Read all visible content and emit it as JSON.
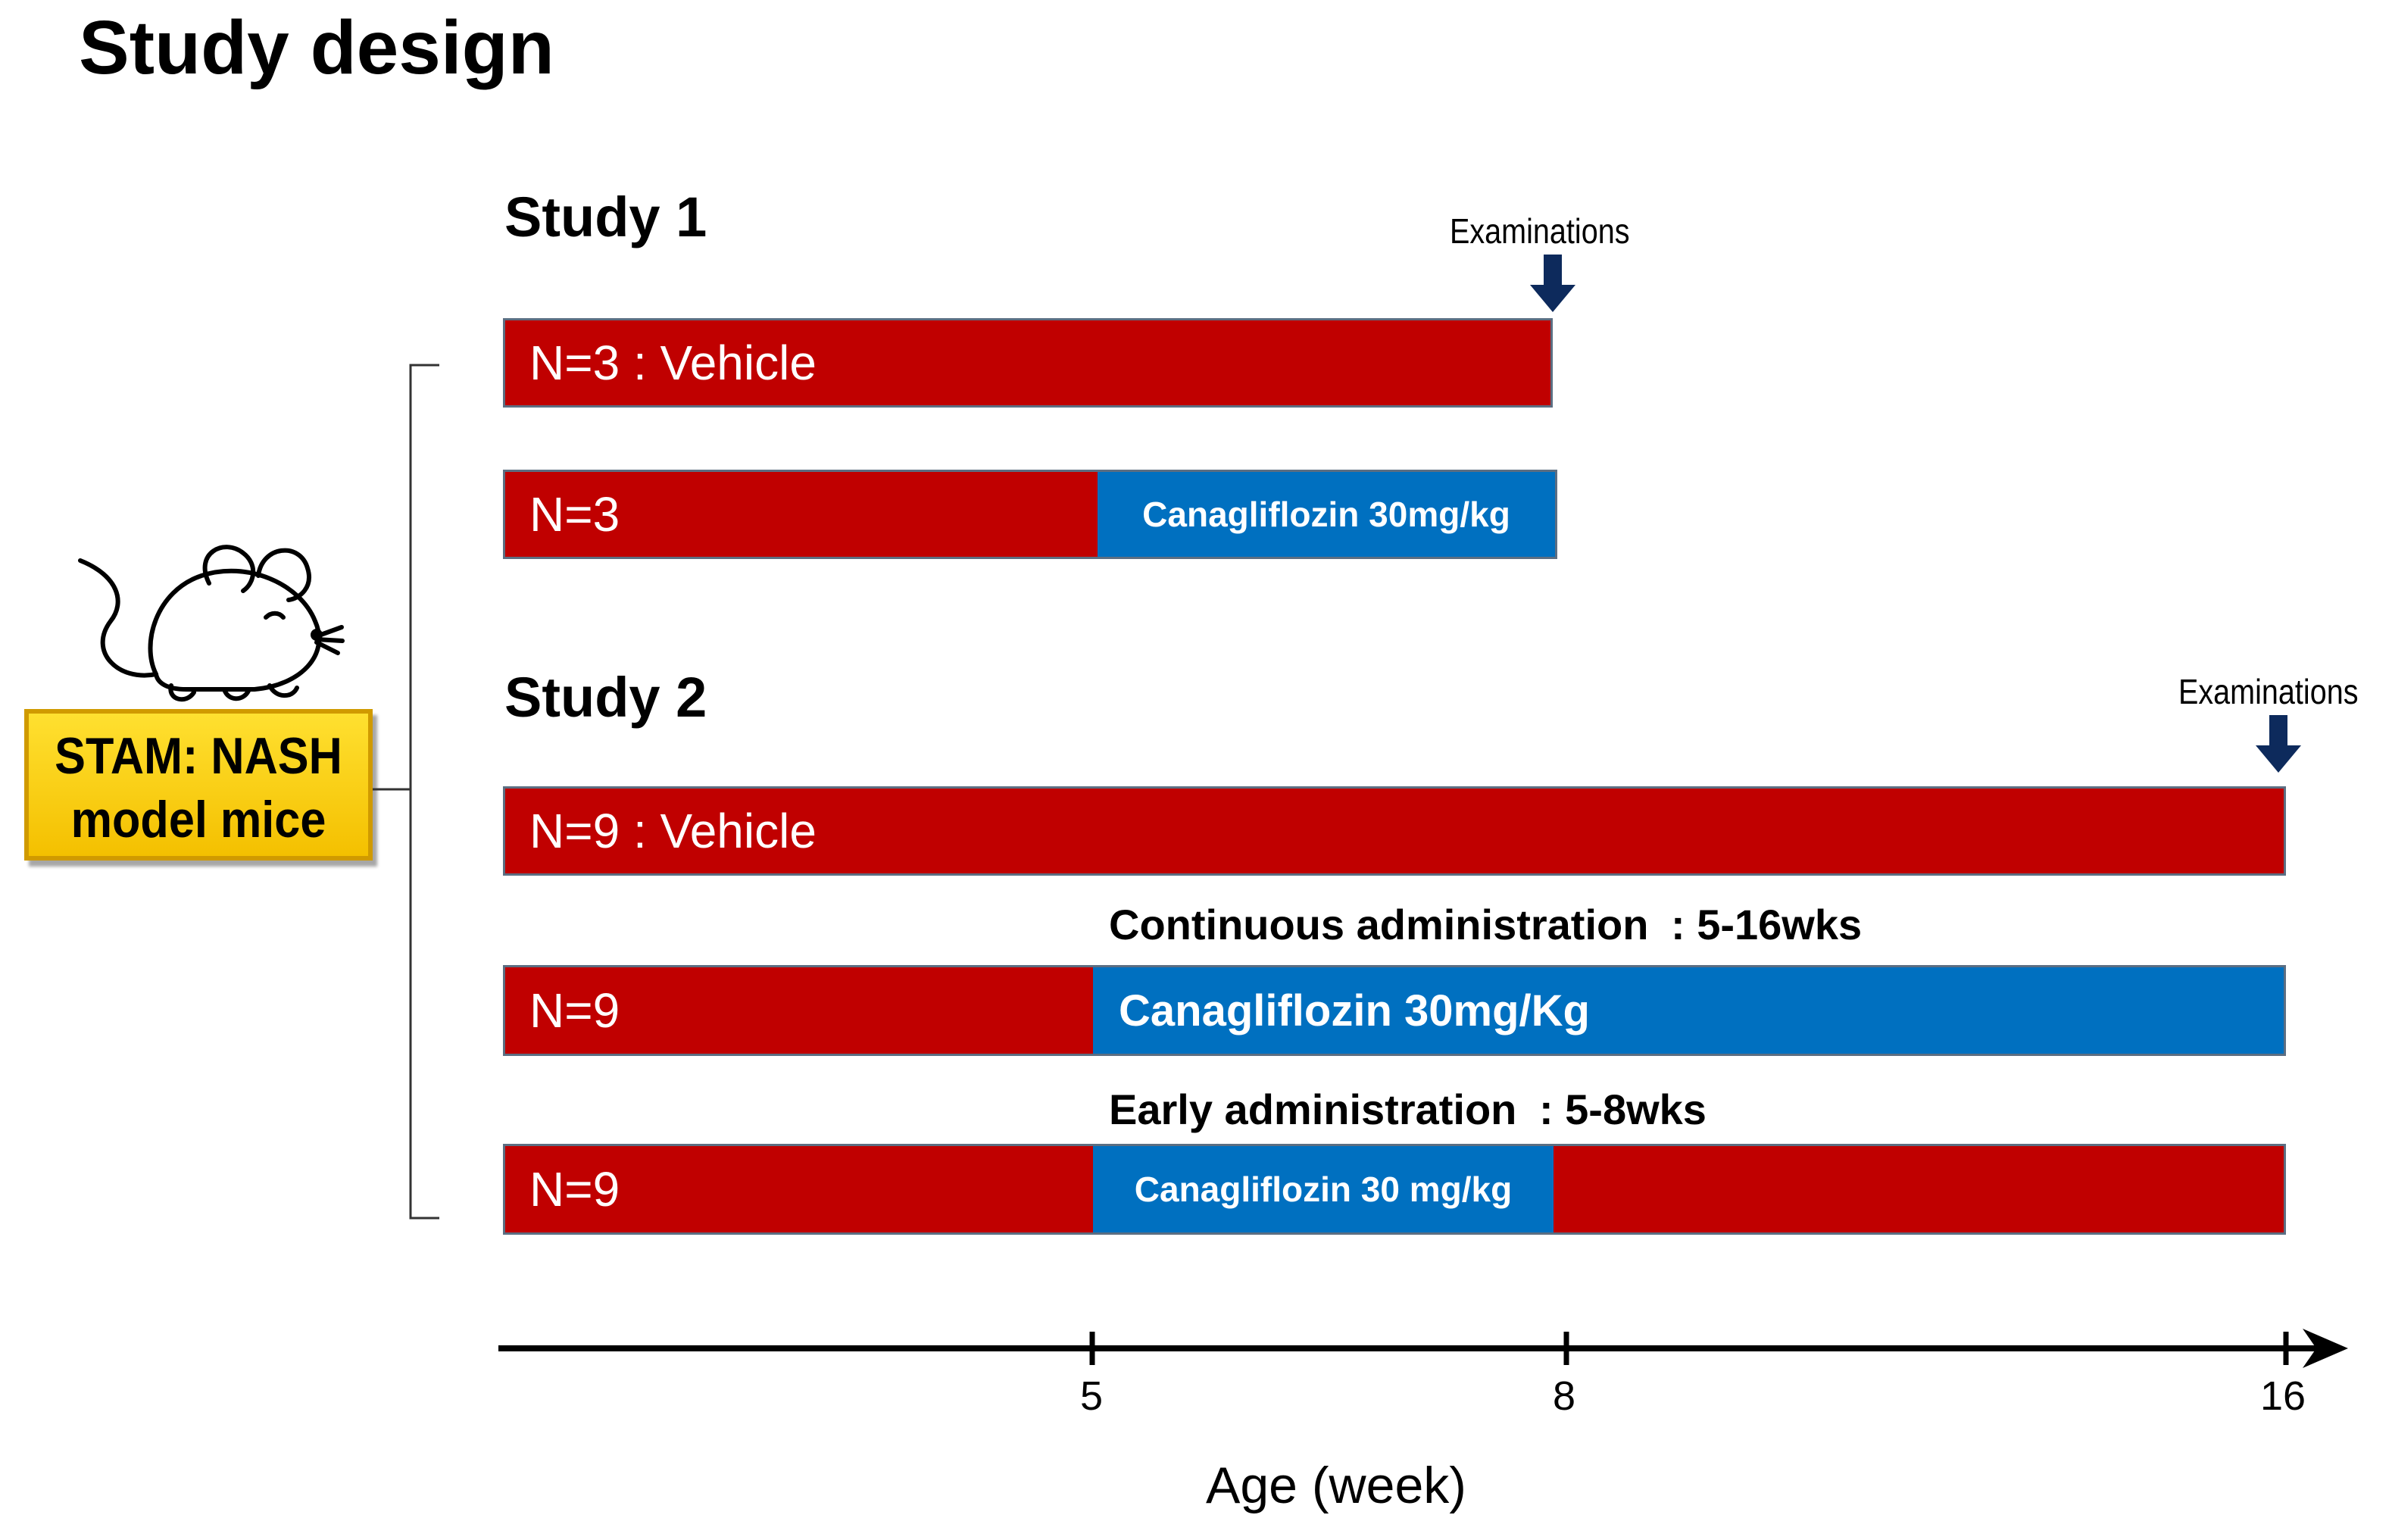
{
  "title": "Study design",
  "badge": {
    "line1": "STAM: NASH",
    "line2": "model mice"
  },
  "study1": {
    "label": "Study 1",
    "exam_label": "Examinations",
    "vehicle_bar": {
      "text": "N=3 : Vehicle"
    },
    "treat_bar": {
      "group": "N=3",
      "drug": "Canagliflozin 30mg/kg"
    }
  },
  "study2": {
    "label": "Study 2",
    "exam_label": "Examinations",
    "vehicle_bar": {
      "text": "N=9 : Vehicle"
    },
    "continuous": {
      "caption_main": "Continuous administration",
      "caption_range": ": 5-16wks",
      "group": "N=9",
      "drug": "Canagliflozin 30mg/Kg"
    },
    "early": {
      "caption_main": "Early administration",
      "caption_range": ": 5-8wks",
      "group": "N=9",
      "drug": "Canagliflozin 30 mg/kg"
    }
  },
  "axis": {
    "ticks": [
      "5",
      "8",
      "16"
    ],
    "title": "Age (week)"
  },
  "colors": {
    "vehicle": "#c00000",
    "drug": "#0070c0",
    "arrow": "#0d2a5c",
    "badge": "#f4c000"
  }
}
